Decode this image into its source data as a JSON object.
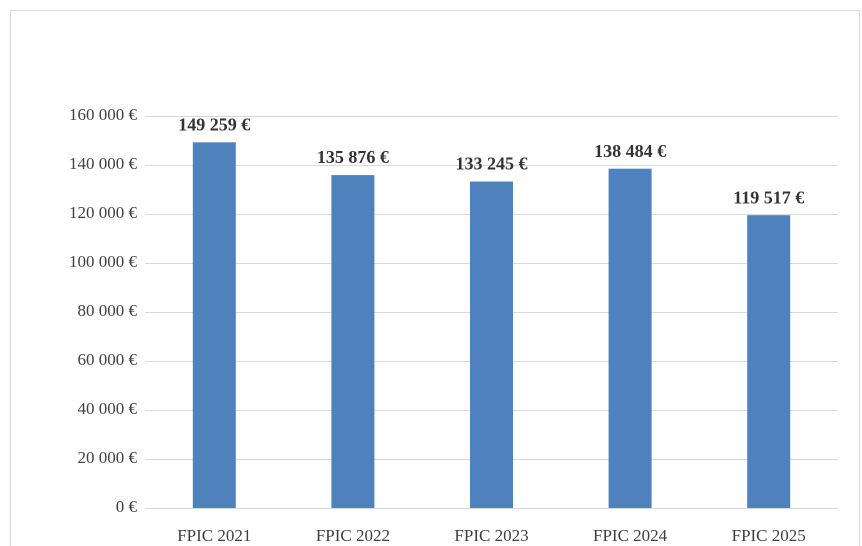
{
  "chart_data": {
    "type": "bar",
    "categories": [
      "FPIC 2021",
      "FPIC 2022",
      "FPIC 2023",
      "FPIC 2024",
      "FPIC 2025"
    ],
    "values": [
      149259,
      135876,
      133245,
      138484,
      119517
    ],
    "value_labels": [
      "149 259 €",
      "135 876 €",
      "133 245 €",
      "138 484 €",
      "119 517 €"
    ],
    "color": "#4f81bd",
    "ylim": [
      0,
      160000
    ],
    "yticks": [
      {
        "value": 0,
        "label": "0 €"
      },
      {
        "value": 20000,
        "label": "20 000 €"
      },
      {
        "value": 40000,
        "label": "40 000 €"
      },
      {
        "value": 60000,
        "label": "60 000 €"
      },
      {
        "value": 80000,
        "label": "80 000 €"
      },
      {
        "value": 100000,
        "label": "100 000 €"
      },
      {
        "value": 120000,
        "label": "120 000 €"
      },
      {
        "value": 140000,
        "label": "140 000 €"
      },
      {
        "value": 160000,
        "label": "160 000 €"
      }
    ],
    "grid": true
  }
}
